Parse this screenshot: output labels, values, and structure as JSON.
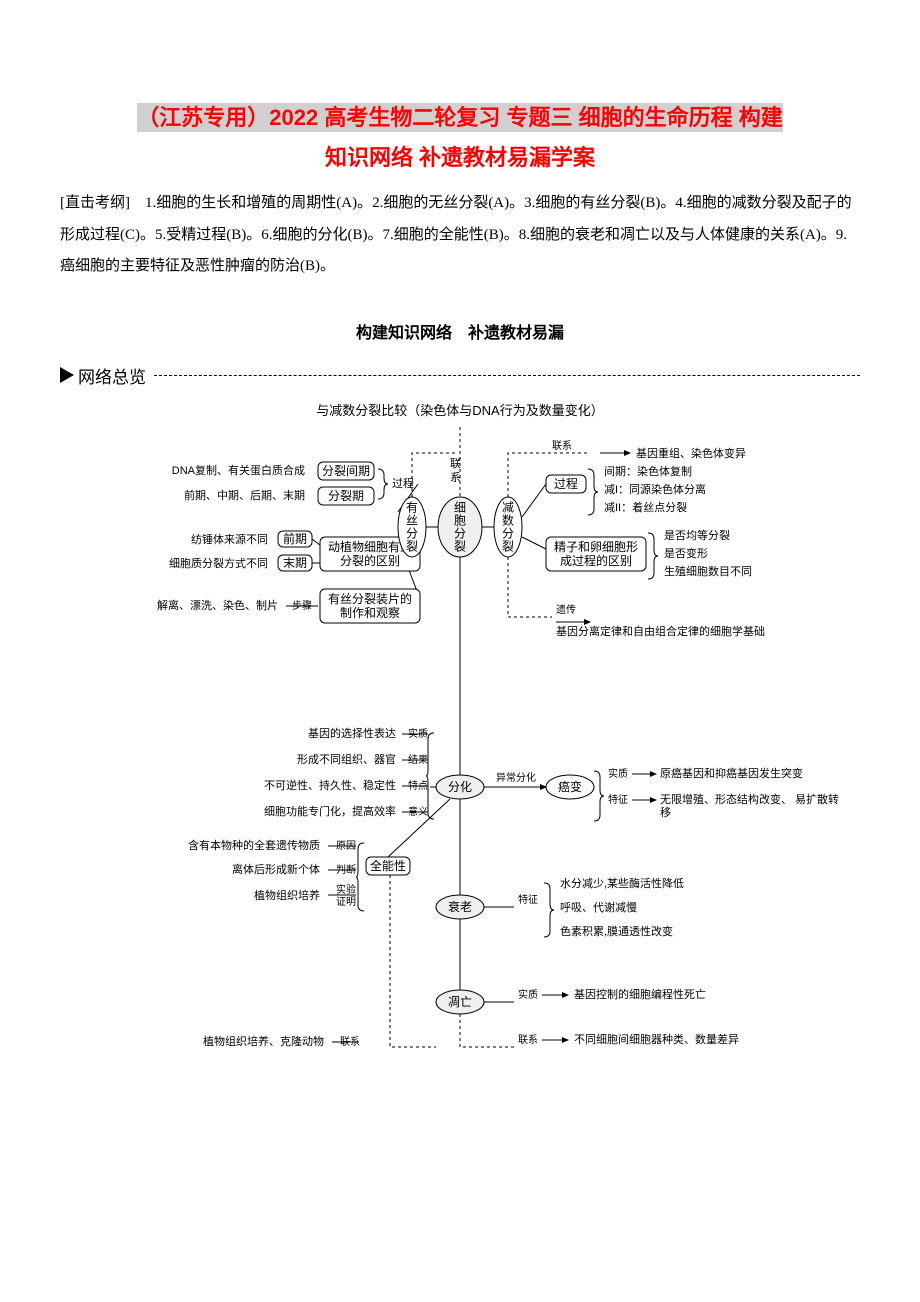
{
  "title": {
    "line1": "（江苏专用）2022 高考生物二轮复习 专题三 细胞的生命历程 构建",
    "line2": "知识网络 补遗教材易漏学案"
  },
  "intro": "[直击考纲]　1.细胞的生长和增殖的周期性(A)。2.细胞的无丝分裂(A)。3.细胞的有丝分裂(B)。4.细胞的减数分裂及配子的形成过程(C)。5.受精过程(B)。6.细胞的分化(B)。7.细胞的全能性(B)。8.细胞的衰老和凋亡以及与人体健康的关系(A)。9.癌细胞的主要特征及恶性肿瘤的防治(B)。",
  "section_title": "构建知识网络　补遗教材易漏",
  "network_heading": "网络总览",
  "diagram": {
    "background_color": "#ffffff",
    "stroke_color": "#000000",
    "dash_color": "#000000",
    "node_fill": "#ffffff",
    "top_label": "与减数分裂比较（染色体与DNA行为及数量变化）",
    "central_nodes": {
      "cell_division": "细胞分裂",
      "mitosis": "有丝分裂",
      "meiosis": "减数分裂",
      "differentiation": "分化",
      "cancer": "癌变",
      "aging": "衰老",
      "apoptosis": "凋亡"
    },
    "mitosis_left": {
      "interphase_box": "分裂间期",
      "division_box": "分裂期",
      "process_label": "过程",
      "interphase_detail": "DNA复制、有关蛋白质合成",
      "division_detail": "前期、中期、后期、末期",
      "lianxi": "联系",
      "qian_box": "前期",
      "mo_box": "末期",
      "ap_diff_box": "动植物细胞有丝分裂的区别",
      "spindle": "纺锤体来源不同",
      "cytokinesis": "细胞质分裂方式不同",
      "steps_label": "步骤",
      "slide_box": "有丝分裂装片的制作和观察",
      "steps_detail": "解离、漂洗、染色、制片"
    },
    "meiosis_right": {
      "link_label": "联系",
      "link_detail": "基因重组、染色体变异",
      "process_box": "过程",
      "interphase": "间期：染色体复制",
      "m1": "减I：同源染色体分离",
      "m2": "减II：着丝点分裂",
      "diff_box": "精子和卵细胞形成过程的区别",
      "d1": "是否均等分裂",
      "d2": "是否变形",
      "d3": "生殖细胞数目不同",
      "inherit_label": "遗传",
      "inherit_detail": "基因分离定律和自由组合定律的细胞学基础"
    },
    "differentiation_left": {
      "essence_label": "实质",
      "essence": "基因的选择性表达",
      "result_label": "结果",
      "result": "形成不同组织、器官",
      "feature_label": "特点",
      "feature": "不可逆性、持久性、稳定性",
      "meaning_label": "意义",
      "meaning": "细胞功能专门化，提高效率",
      "totipotent": "全能性",
      "reason_label": "原因",
      "reason": "含有本物种的全套遗传物质",
      "judge_label": "判断",
      "judge": "离体后形成新个体",
      "proof_label": "实验证明",
      "proof": "植物组织培养",
      "link_label": "联系",
      "link": "植物组织培养、克隆动物"
    },
    "cancer_right": {
      "link_label": "异常分化",
      "essence_label": "实质",
      "essence": "原癌基因和抑癌基因发生突变",
      "feature_label": "特征",
      "feature": "无限增殖、形态结构改变、 易扩散转移"
    },
    "aging_right": {
      "feature_label": "特征",
      "f1": "水分减少,某些酶活性降低",
      "f2": "呼吸、代谢减慢",
      "f3": "色素积累,膜通透性改变"
    },
    "apoptosis_right": {
      "essence_label": "实质",
      "essence": "基因控制的细胞编程性死亡",
      "link_label": "联系",
      "link": "不同细胞间细胞器种类、数量差异"
    }
  }
}
